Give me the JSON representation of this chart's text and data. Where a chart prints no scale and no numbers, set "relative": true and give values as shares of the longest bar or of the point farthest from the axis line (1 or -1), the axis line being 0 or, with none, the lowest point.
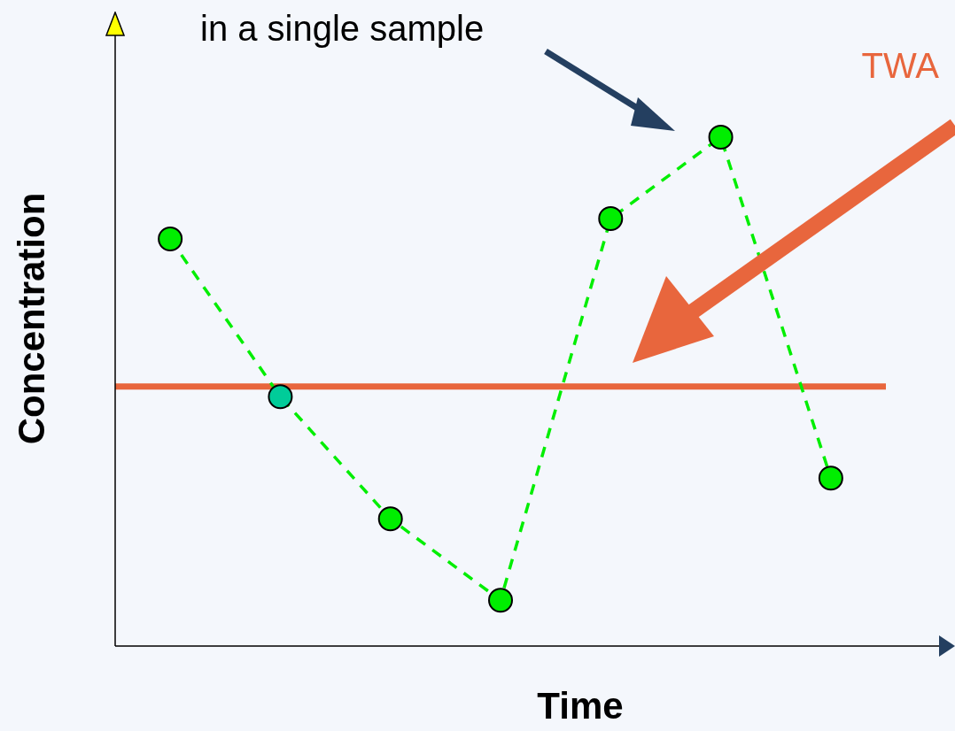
{
  "chart_data": {
    "type": "line",
    "relative": true,
    "xlabel": "Time",
    "ylabel": "Concentration",
    "annotations": [
      "in a single sample",
      "TWA"
    ],
    "categories": [
      null,
      null,
      null,
      null,
      null,
      null,
      null
    ],
    "series": [
      {
        "color": "#00ee00",
        "colors": [
          "#00ee00",
          "#00cc99",
          "#00ee00",
          "#00ee00",
          "#00ee00",
          "#00ee00",
          "#00ee00"
        ],
        "values": [
          0.8,
          0.49,
          0.25,
          0.09,
          0.84,
          1.0,
          0.33
        ]
      }
    ],
    "ref_lines": [
      {
        "axis": "y",
        "value": 0.51,
        "color": "#e8663d"
      }
    ],
    "marker": "circle",
    "line_style": "dashed",
    "legend": false
  }
}
